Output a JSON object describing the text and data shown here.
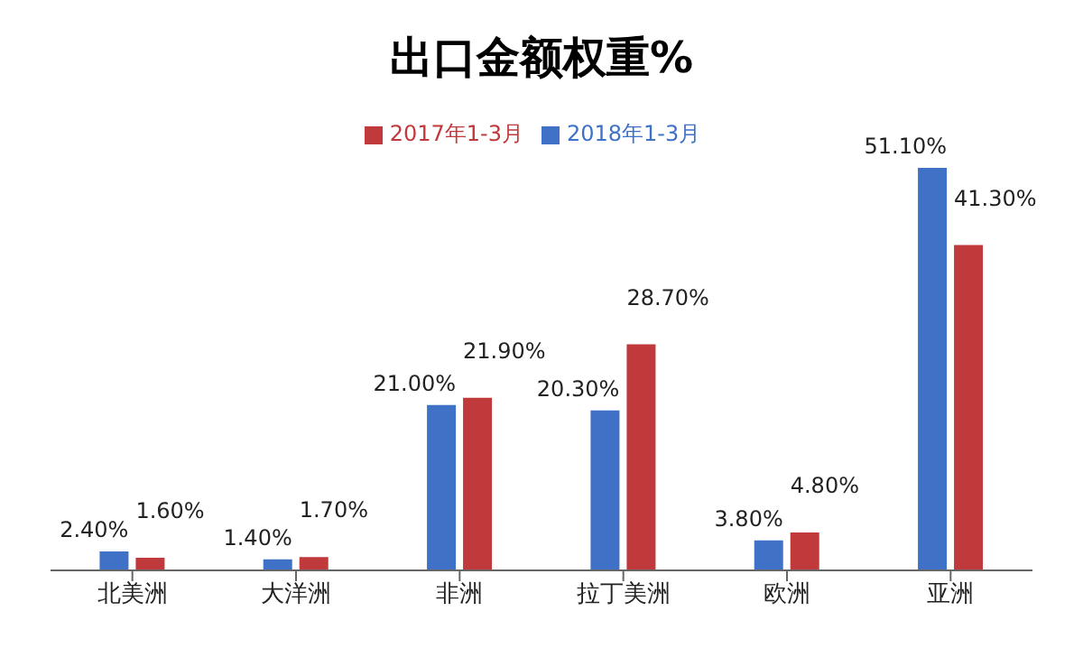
{
  "chart_data": {
    "type": "bar",
    "title": "出口金额权重%",
    "categories": [
      "北美洲",
      "大洋洲",
      "非洲",
      "拉丁美洲",
      "欧洲",
      "亚洲"
    ],
    "series": [
      {
        "name": "2018年1-3月",
        "color": "#3f72c6",
        "values": [
          2.4,
          1.4,
          21.0,
          20.3,
          3.8,
          51.1
        ],
        "value_labels": [
          "2.40%",
          "1.40%",
          "21.00%",
          "20.30%",
          "3.80%",
          "51.10%"
        ]
      },
      {
        "name": "2017年1-3月",
        "color": "#c0393b",
        "values": [
          1.6,
          1.7,
          21.9,
          28.7,
          4.8,
          41.3
        ],
        "value_labels": [
          "1.60%",
          "1.70%",
          "21.90%",
          "28.70%",
          "4.80%",
          "41.30%"
        ]
      }
    ],
    "legend": "top"
  }
}
